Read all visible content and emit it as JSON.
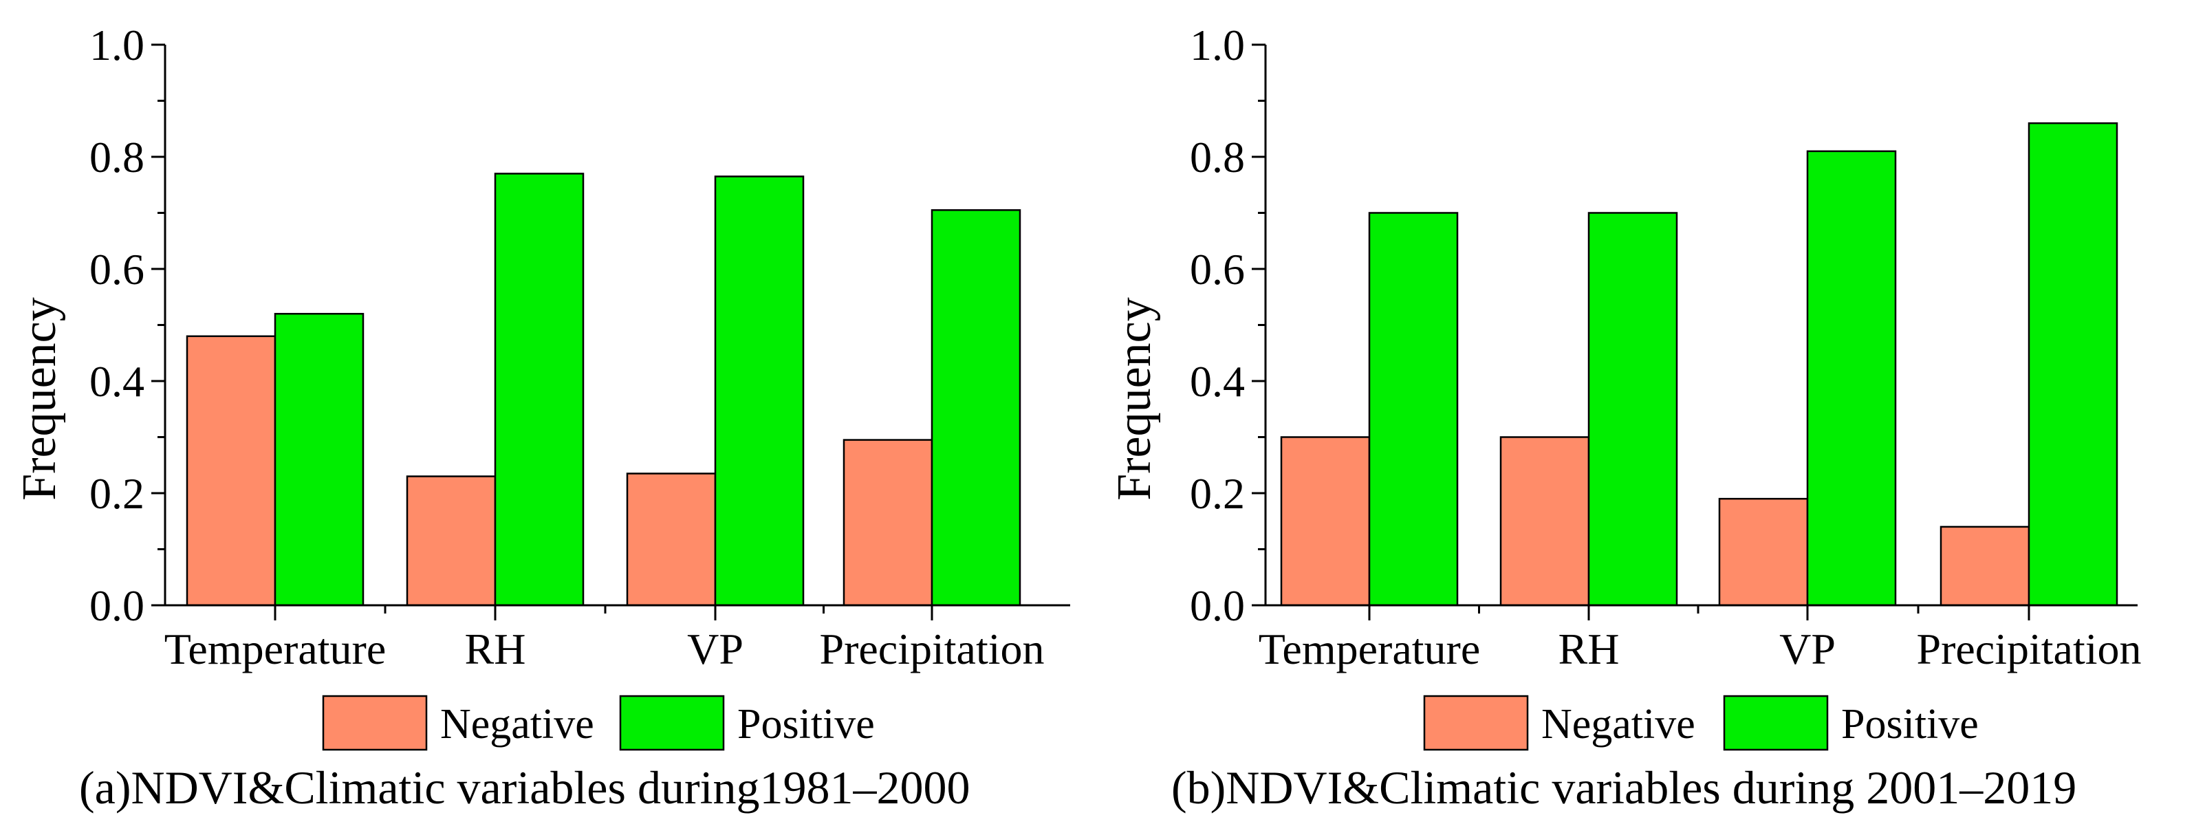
{
  "chart_data": [
    {
      "type": "bar",
      "caption": "(a)NDVI&Climatic variables during1981–2000",
      "ylabel": "Frequency",
      "xlabel": "",
      "ylim": [
        0.0,
        1.0
      ],
      "yticks": [
        "0.0",
        "0.2",
        "0.4",
        "0.6",
        "0.8",
        "1.0"
      ],
      "categories": [
        "Temperature",
        "RH",
        "VP",
        "Precipitation"
      ],
      "series": [
        {
          "name": "Negative",
          "color": "#FF8C69",
          "values": [
            0.48,
            0.23,
            0.235,
            0.295
          ]
        },
        {
          "name": "Positive",
          "color": "#00EE00",
          "values": [
            0.52,
            0.77,
            0.765,
            0.705
          ]
        }
      ],
      "grid": false,
      "legend": "bottom"
    },
    {
      "type": "bar",
      "caption": "(b)NDVI&Climatic variables during 2001–2019",
      "ylabel": "Frequency",
      "xlabel": "",
      "ylim": [
        0.0,
        1.0
      ],
      "yticks": [
        "0.0",
        "0.2",
        "0.4",
        "0.6",
        "0.8",
        "1.0"
      ],
      "categories": [
        "Temperature",
        "RH",
        "VP",
        "Precipitation"
      ],
      "series": [
        {
          "name": "Negative",
          "color": "#FF8C69",
          "values": [
            0.3,
            0.3,
            0.19,
            0.14
          ]
        },
        {
          "name": "Positive",
          "color": "#00EE00",
          "values": [
            0.7,
            0.7,
            0.81,
            0.86
          ]
        }
      ],
      "grid": false,
      "legend": "bottom"
    }
  ]
}
